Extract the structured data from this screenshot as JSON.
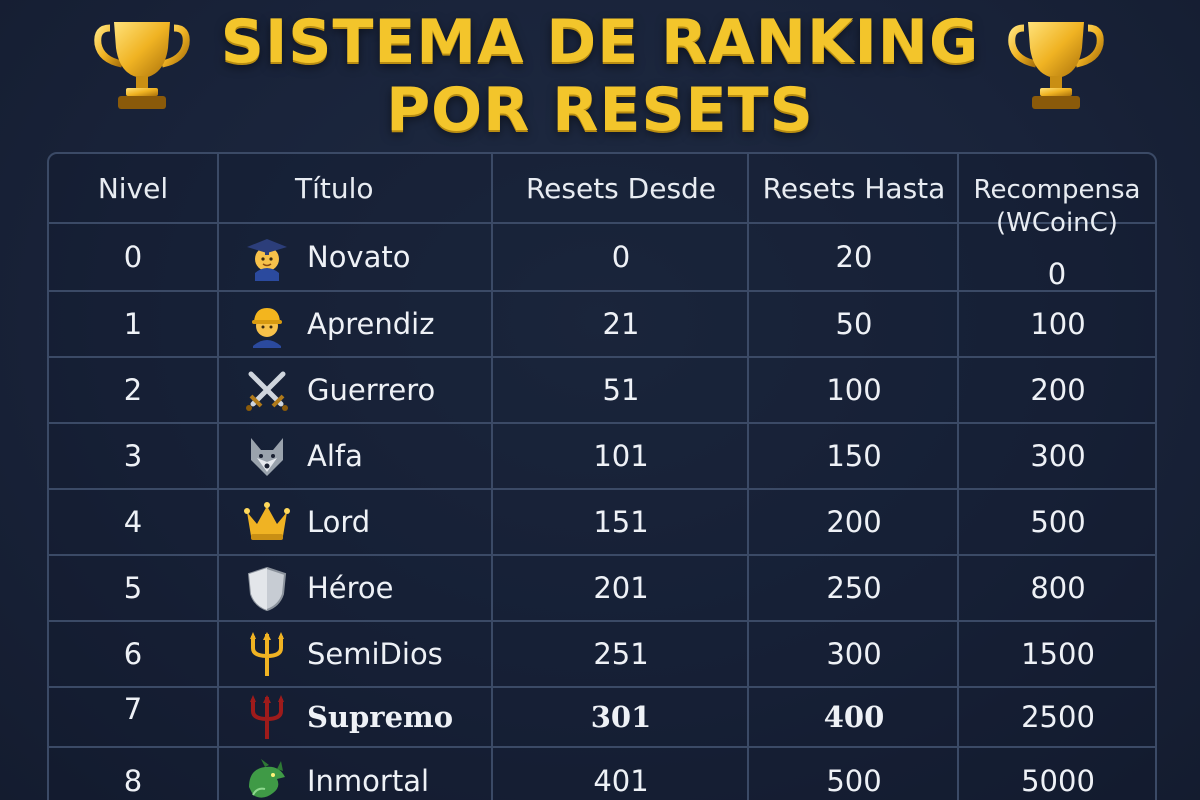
{
  "header": {
    "title_line1": "SISTEMA DE RANKING",
    "title_line2": "POR RESETS"
  },
  "columns": {
    "nivel": "Nivel",
    "titulo": "Título",
    "desde": "Resets Desde",
    "hasta": "Resets Hasta",
    "recompensa": "Recompensa\n(WCoinC)"
  },
  "rows": [
    {
      "nivel": "0",
      "titulo": "Novato",
      "desde": "0",
      "hasta": "20",
      "recompensa": "0",
      "icon": "student-icon"
    },
    {
      "nivel": "1",
      "titulo": "Aprendiz",
      "desde": "21",
      "hasta": "50",
      "recompensa": "100",
      "icon": "construction-worker-icon"
    },
    {
      "nivel": "2",
      "titulo": "Guerrero",
      "desde": "51",
      "hasta": "100",
      "recompensa": "200",
      "icon": "crossed-swords-icon"
    },
    {
      "nivel": "3",
      "titulo": "Alfa",
      "desde": "101",
      "hasta": "150",
      "recompensa": "300",
      "icon": "wolf-icon"
    },
    {
      "nivel": "4",
      "titulo": "Lord",
      "desde": "151",
      "hasta": "200",
      "recompensa": "500",
      "icon": "crown-icon"
    },
    {
      "nivel": "5",
      "titulo": "Héroe",
      "desde": "201",
      "hasta": "250",
      "recompensa": "800",
      "icon": "shield-icon"
    },
    {
      "nivel": "6",
      "titulo": "SemiDios",
      "desde": "251",
      "hasta": "300",
      "recompensa": "1500",
      "icon": "golden-trident-icon"
    },
    {
      "nivel": "7",
      "titulo": "Supremo",
      "desde": "301",
      "hasta": "400",
      "recompensa": "2500",
      "icon": "red-trident-icon"
    },
    {
      "nivel": "8",
      "titulo": "Inmortal",
      "desde": "401",
      "hasta": "500",
      "recompensa": "5000",
      "icon": "green-dragon-icon"
    }
  ],
  "colors": {
    "title": "#f3c52b",
    "background": "#19233a",
    "grid": "#3b4a66",
    "text": "#eef1f6"
  }
}
